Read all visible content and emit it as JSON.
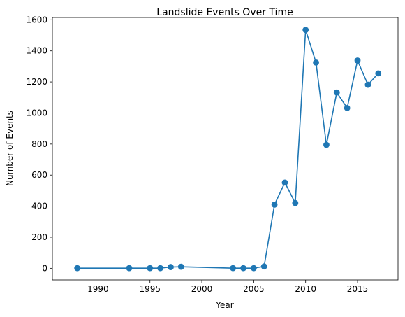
{
  "chart_data": {
    "type": "line",
    "title": "Landslide Events Over Time",
    "xlabel": "Year",
    "ylabel": "Number of Events",
    "xlim": [
      1985.6,
      2018.9
    ],
    "ylim": [
      -75,
      1615
    ],
    "xticks": [
      1990,
      1995,
      2000,
      2005,
      2010,
      2015
    ],
    "yticks": [
      0,
      200,
      400,
      600,
      800,
      1000,
      1200,
      1400,
      1600
    ],
    "grid": false,
    "markers": true,
    "color": "#1f77b4",
    "series": [
      {
        "x": [
          1988,
          1993,
          1995,
          1996,
          1997,
          1998,
          2003,
          2004,
          2005,
          2006,
          2007,
          2008,
          2009,
          2010,
          2011,
          2012,
          2013,
          2014,
          2015,
          2016,
          2017
        ],
        "y": [
          1,
          1,
          1,
          1,
          8,
          10,
          1,
          1,
          1,
          12,
          410,
          552,
          420,
          1535,
          1325,
          795,
          1132,
          1032,
          1338,
          1182,
          1255
        ]
      }
    ]
  }
}
